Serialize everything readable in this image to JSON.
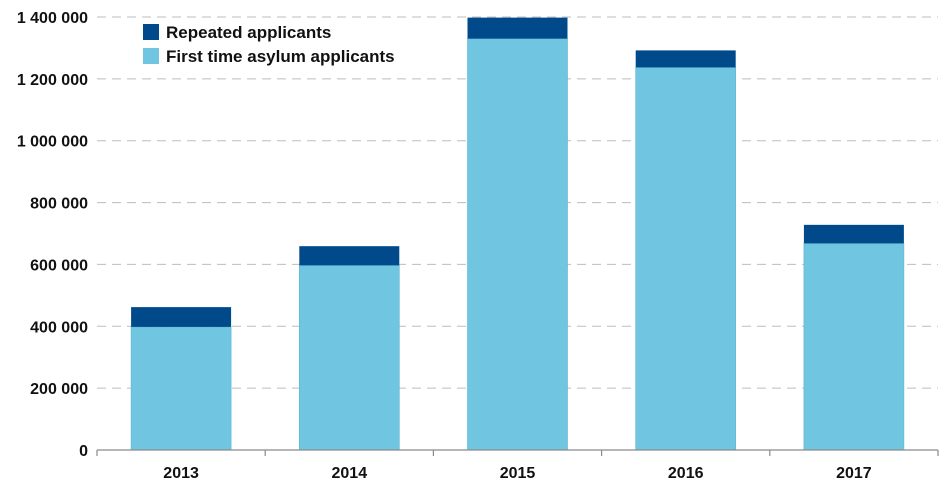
{
  "chart_data": {
    "type": "bar",
    "stacked": true,
    "categories": [
      "2013",
      "2014",
      "2015",
      "2016",
      "2017"
    ],
    "series": [
      {
        "name": "First time asylum applicants",
        "color": "#70c6e1",
        "values": [
          398000,
          597000,
          1330000,
          1237000,
          668000
        ]
      },
      {
        "name": "Repeated applicants",
        "color": "#004a8c",
        "values": [
          64000,
          62000,
          68000,
          55000,
          60000
        ]
      }
    ],
    "ylim": [
      0,
      1400000
    ],
    "yticks": [
      0,
      200000,
      400000,
      600000,
      800000,
      1000000,
      1200000,
      1400000
    ],
    "ytick_labels": [
      "0",
      "200 000",
      "400 000",
      "600 000",
      "800 000",
      "1 000 000",
      "1 200 000",
      "1 400 000"
    ],
    "grid": true,
    "legend": {
      "position": "top-left",
      "entries": [
        "Repeated applicants",
        "First time asylum applicants"
      ]
    }
  }
}
